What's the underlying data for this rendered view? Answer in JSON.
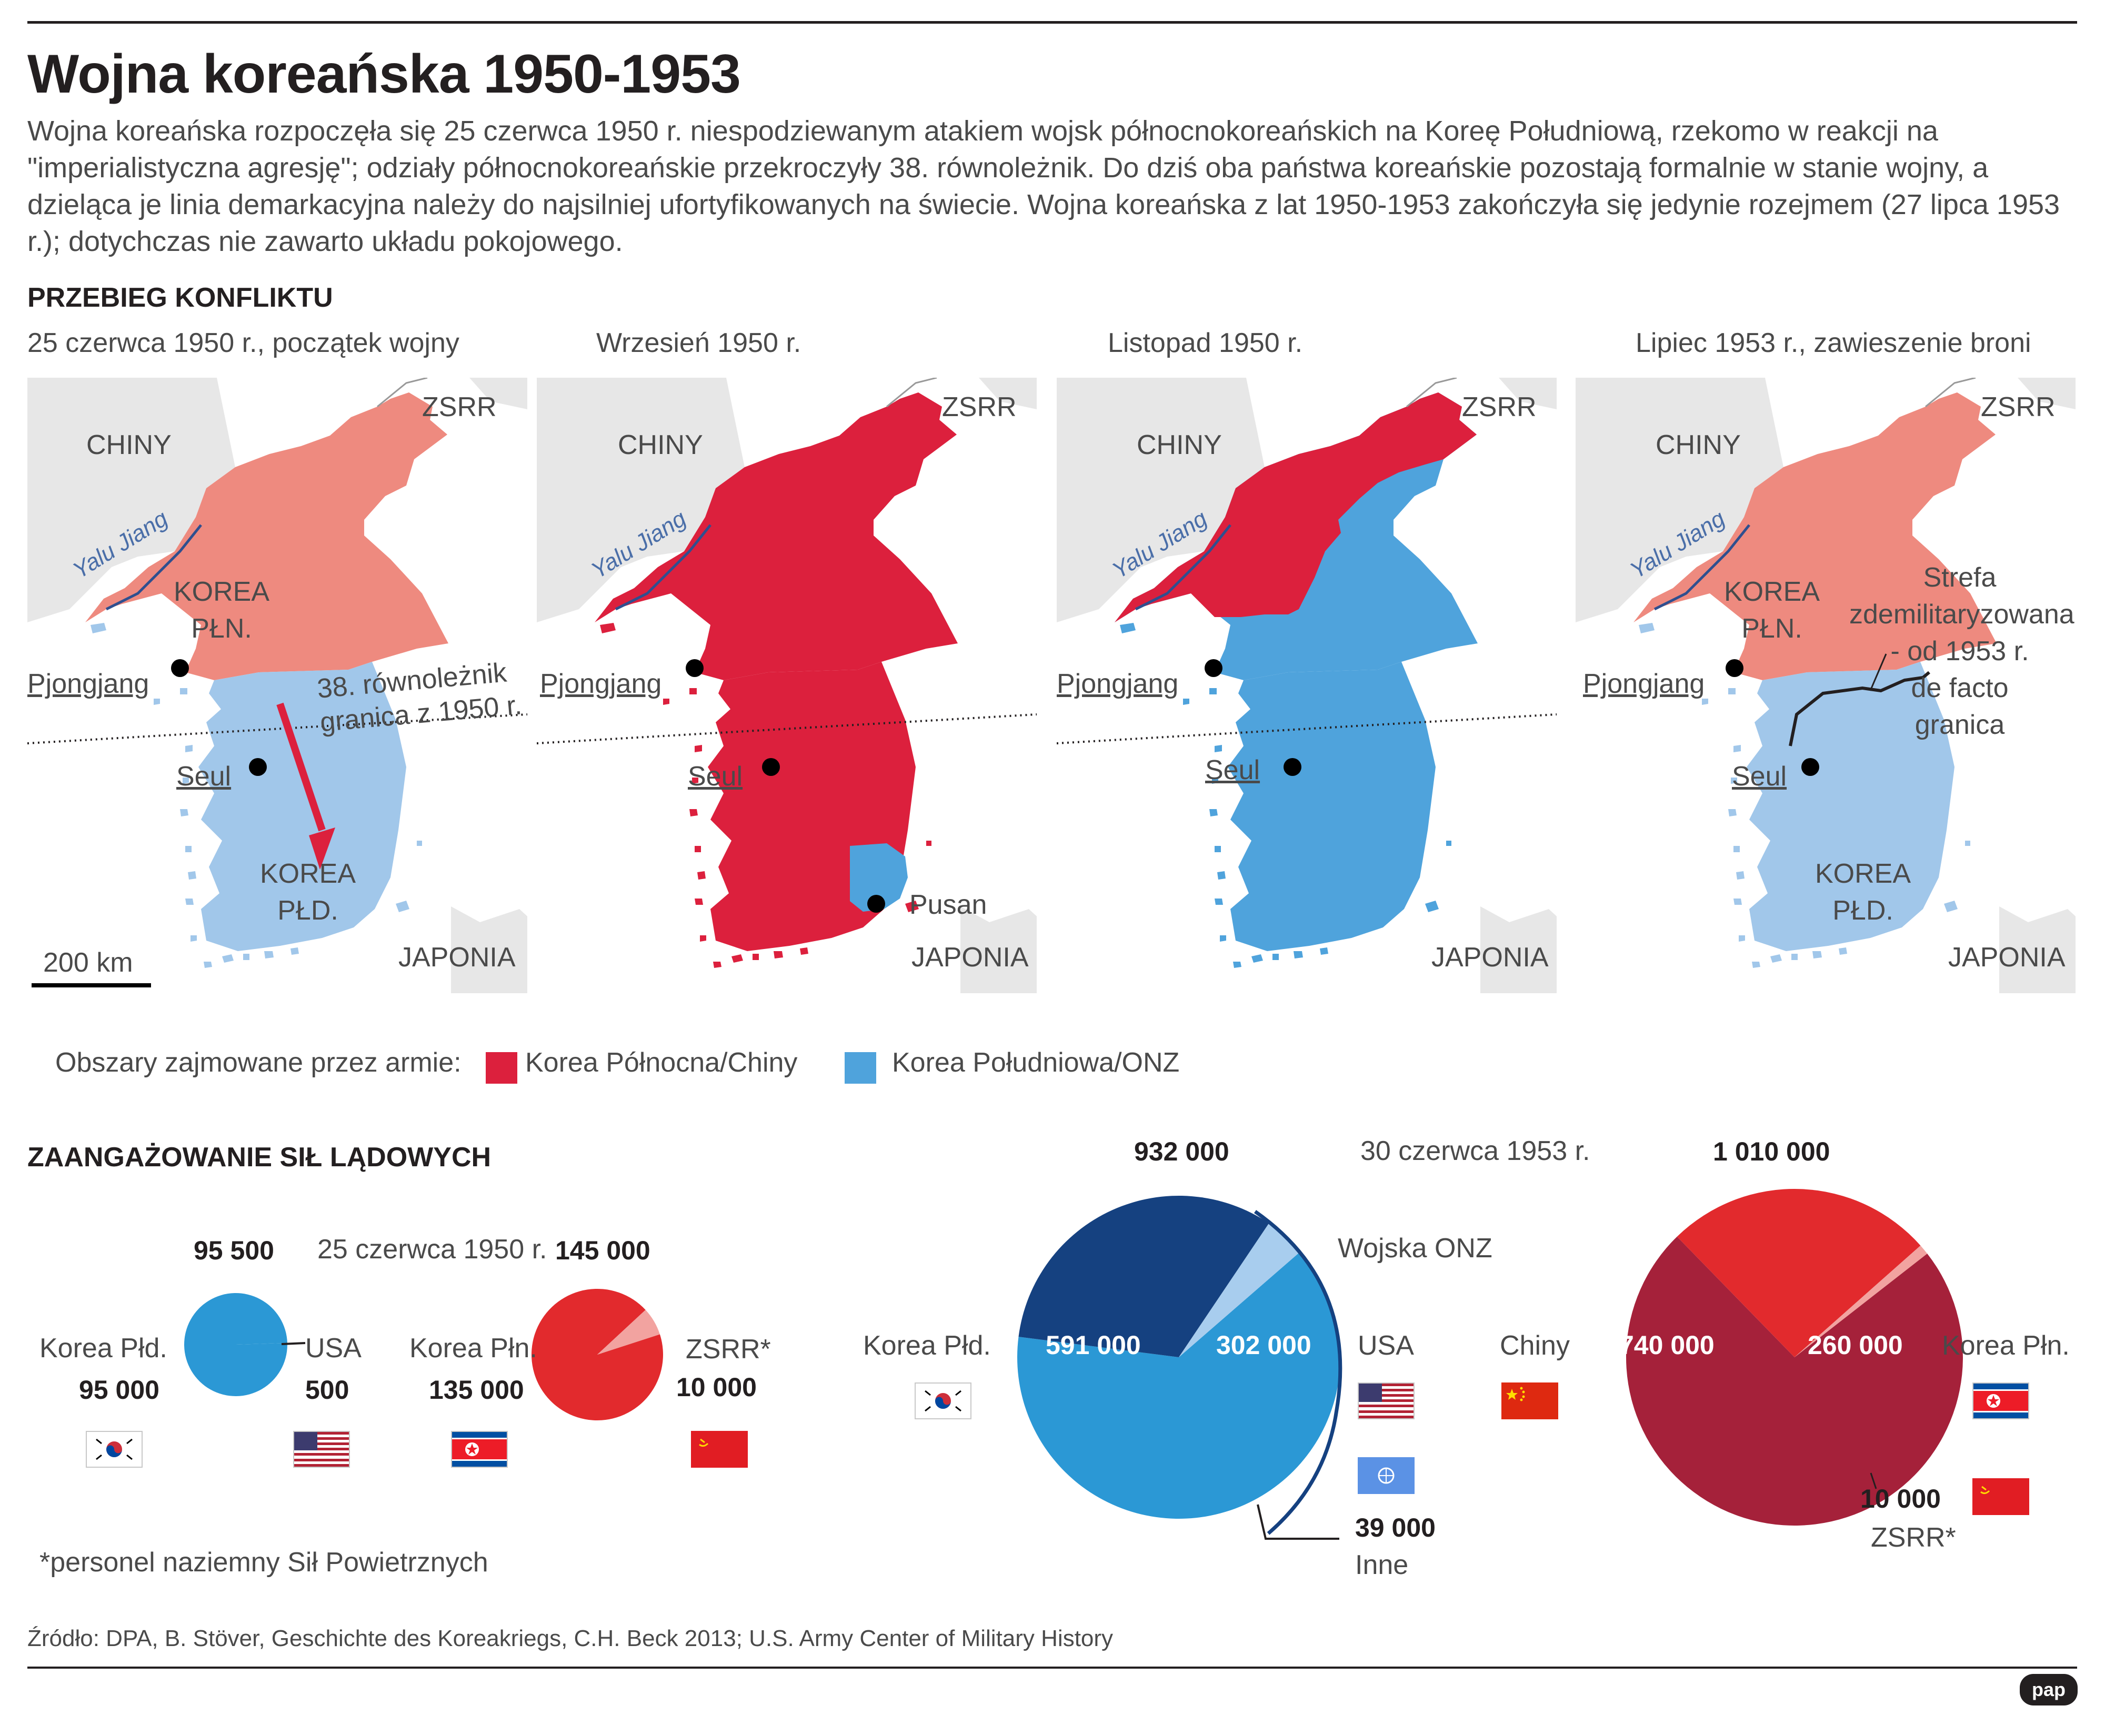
{
  "header": {
    "title": "Wojna koreańska 1950-1953",
    "intro": "Wojna koreańska rozpoczęła się 25 czerwca 1950 r. niespodziewanym atakiem wojsk północnokoreańskich na Koreę Południową, rzekomo w reakcji na \"imperialistyczna agresję\"; odziały północnokoreańskie przekroczyły 38. równoleżnik. Do dziś oba państwa koreańskie pozostają formalnie w stanie wojny, a dzieląca je linia demarkacyjna należy do najsilniej ufortyfikowanych na świecie. Wojna koreańska z lat 1950-1953 zakończyła się jedynie rozejmem (27 lipca 1953 r.); dotychczas nie zawarto układu pokojowego."
  },
  "conflict": {
    "heading": "PRZEBIEG KONFLIKTU",
    "maps": [
      {
        "title": "25 czerwca 1950 r., początek wojny",
        "labels": {
          "china": "CHINY",
          "ussr": "ZSRR",
          "river": "Yalu Jiang",
          "north": [
            "KOREA",
            "PŁN."
          ],
          "pyongyang": "Pjongjang",
          "parallel": [
            "38. równoleżnik",
            "granica z 1950 r."
          ],
          "seoul": "Seul",
          "south": [
            "KOREA",
            "PŁD."
          ],
          "japan": "JAPONIA",
          "scale": "200 km"
        }
      },
      {
        "title": "Wrzesień 1950 r.",
        "labels": {
          "china": "CHINY",
          "ussr": "ZSRR",
          "river": "Yalu Jiang",
          "pyongyang": "Pjongjang",
          "seoul": "Seul",
          "pusan": "Pusan",
          "japan": "JAPONIA"
        }
      },
      {
        "title": "Listopad 1950 r.",
        "labels": {
          "china": "CHINY",
          "ussr": "ZSRR",
          "river": "Yalu Jiang",
          "pyongyang": "Pjongjang",
          "seoul": "Seul",
          "japan": "JAPONIA"
        }
      },
      {
        "title": "Lipiec 1953 r., zawieszenie broni",
        "labels": {
          "china": "CHINY",
          "ussr": "ZSRR",
          "river": "Yalu Jiang",
          "north": [
            "KOREA",
            "PŁN."
          ],
          "pyongyang": "Pjongjang",
          "dmz": [
            "Strefa",
            "zdemilitaryzowana",
            "- od 1953 r.",
            "de facto",
            "granica"
          ],
          "seoul": "Seul",
          "south": [
            "KOREA",
            "PŁD."
          ],
          "japan": "JAPONIA"
        }
      }
    ],
    "legend": {
      "label": "Obszary zajmowane przez armie:",
      "items": [
        {
          "label": "Korea Północna/Chiny",
          "color": "#dc203d"
        },
        {
          "label": "Korea Południowa/ONZ",
          "color": "#4fa3dc"
        }
      ]
    }
  },
  "forces": {
    "heading": "ZAANGAŻOWANIE SIŁ LĄDOWYCH",
    "footnote": "*personel naziemny Sił Powietrznych",
    "pie_1950_south": {
      "date": "25 czerwca 1950 r.",
      "total": "95 500",
      "slices": [
        {
          "label": "Korea Płd.",
          "value": "95 000",
          "v": 95000,
          "color": "#2b98d5"
        },
        {
          "label": "USA",
          "value": "500",
          "v": 500,
          "color": "#2b98d5"
        }
      ]
    },
    "pie_1950_north": {
      "total": "145 000",
      "slices": [
        {
          "label": "Korea Płn.",
          "value": "135 000",
          "v": 135000,
          "color": "#e22a2d"
        },
        {
          "label": "ZSRR*",
          "value": "10 000",
          "v": 10000,
          "color": "#f2a3a0"
        }
      ]
    },
    "pie_1953_south": {
      "date": "30 czerwca 1953 r.",
      "total": "932 000",
      "group_label": "Wojska ONZ",
      "slices": [
        {
          "label": "Korea Płd.",
          "value": "591 000",
          "v": 591000,
          "color": "#2b98d5"
        },
        {
          "label": "USA",
          "value": "302 000",
          "v": 302000,
          "color": "#154180"
        },
        {
          "label": "Inne",
          "value": "39 000",
          "v": 39000,
          "color": "#a8cdee"
        }
      ]
    },
    "pie_1953_north": {
      "total": "1 010 000",
      "slices": [
        {
          "label": "Chiny",
          "value": "740 000",
          "v": 740000,
          "color": "#a5213a"
        },
        {
          "label": "Korea Płn.",
          "value": "260 000",
          "v": 260000,
          "color": "#e22a2d"
        },
        {
          "label": "ZSRR*",
          "value": "10 000",
          "v": 10000,
          "color": "#f2a3a0"
        }
      ]
    }
  },
  "footer": {
    "source": "Źródło: DPA, B. Stöver, Geschichte des Koreakriegs, C.H. Beck 2013; U.S. Army Center of Military History",
    "logo": "pap"
  },
  "colors": {
    "north_light": "#ee8a7f",
    "north_red": "#dc203d",
    "south_light": "#a1c7ea",
    "south_blue": "#4fa3dc",
    "land_gray": "#e7e7e7",
    "river": "#2f4f8f"
  }
}
